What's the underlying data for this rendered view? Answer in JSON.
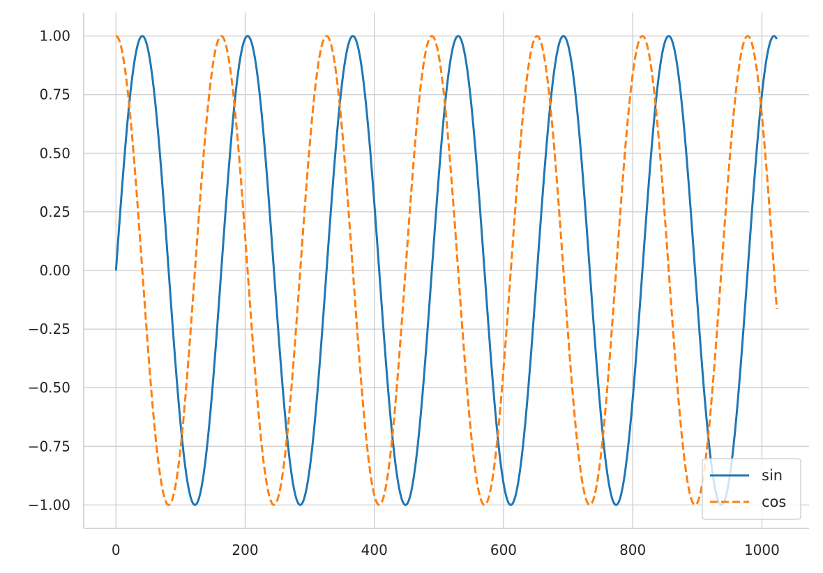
{
  "chart_data": {
    "type": "line",
    "title": "",
    "xlabel": "",
    "ylabel": "",
    "xlim": [
      -50,
      1073
    ],
    "ylim": [
      -1.1,
      1.1
    ],
    "grid": true,
    "legend_position": "bottom-right",
    "x_ticks": [
      {
        "value": 0,
        "label": "0"
      },
      {
        "value": 200,
        "label": "200"
      },
      {
        "value": 400,
        "label": "400"
      },
      {
        "value": 600,
        "label": "600"
      },
      {
        "value": 800,
        "label": "800"
      },
      {
        "value": 1000,
        "label": "1000"
      }
    ],
    "y_ticks": [
      {
        "value": 1.0,
        "label": "1.00"
      },
      {
        "value": 0.75,
        "label": "0.75"
      },
      {
        "value": 0.5,
        "label": "0.50"
      },
      {
        "value": 0.25,
        "label": "0.25"
      },
      {
        "value": 0.0,
        "label": "0.00"
      },
      {
        "value": -0.25,
        "label": "−0.25"
      },
      {
        "value": -0.5,
        "label": "−0.50"
      },
      {
        "value": -0.75,
        "label": "−0.75"
      },
      {
        "value": -1.0,
        "label": "−1.00"
      }
    ],
    "x_range": [
      0,
      1023
    ],
    "series": [
      {
        "name": "sin",
        "function": "sin",
        "color": "#1f77b4",
        "line_style": "solid",
        "x_start": 0,
        "x_end": 1023,
        "period": 163
      },
      {
        "name": "cos",
        "function": "cos",
        "color": "#ff7f0e",
        "line_style": "dashed",
        "x_start": 0,
        "x_end": 1023,
        "period": 163
      }
    ]
  }
}
